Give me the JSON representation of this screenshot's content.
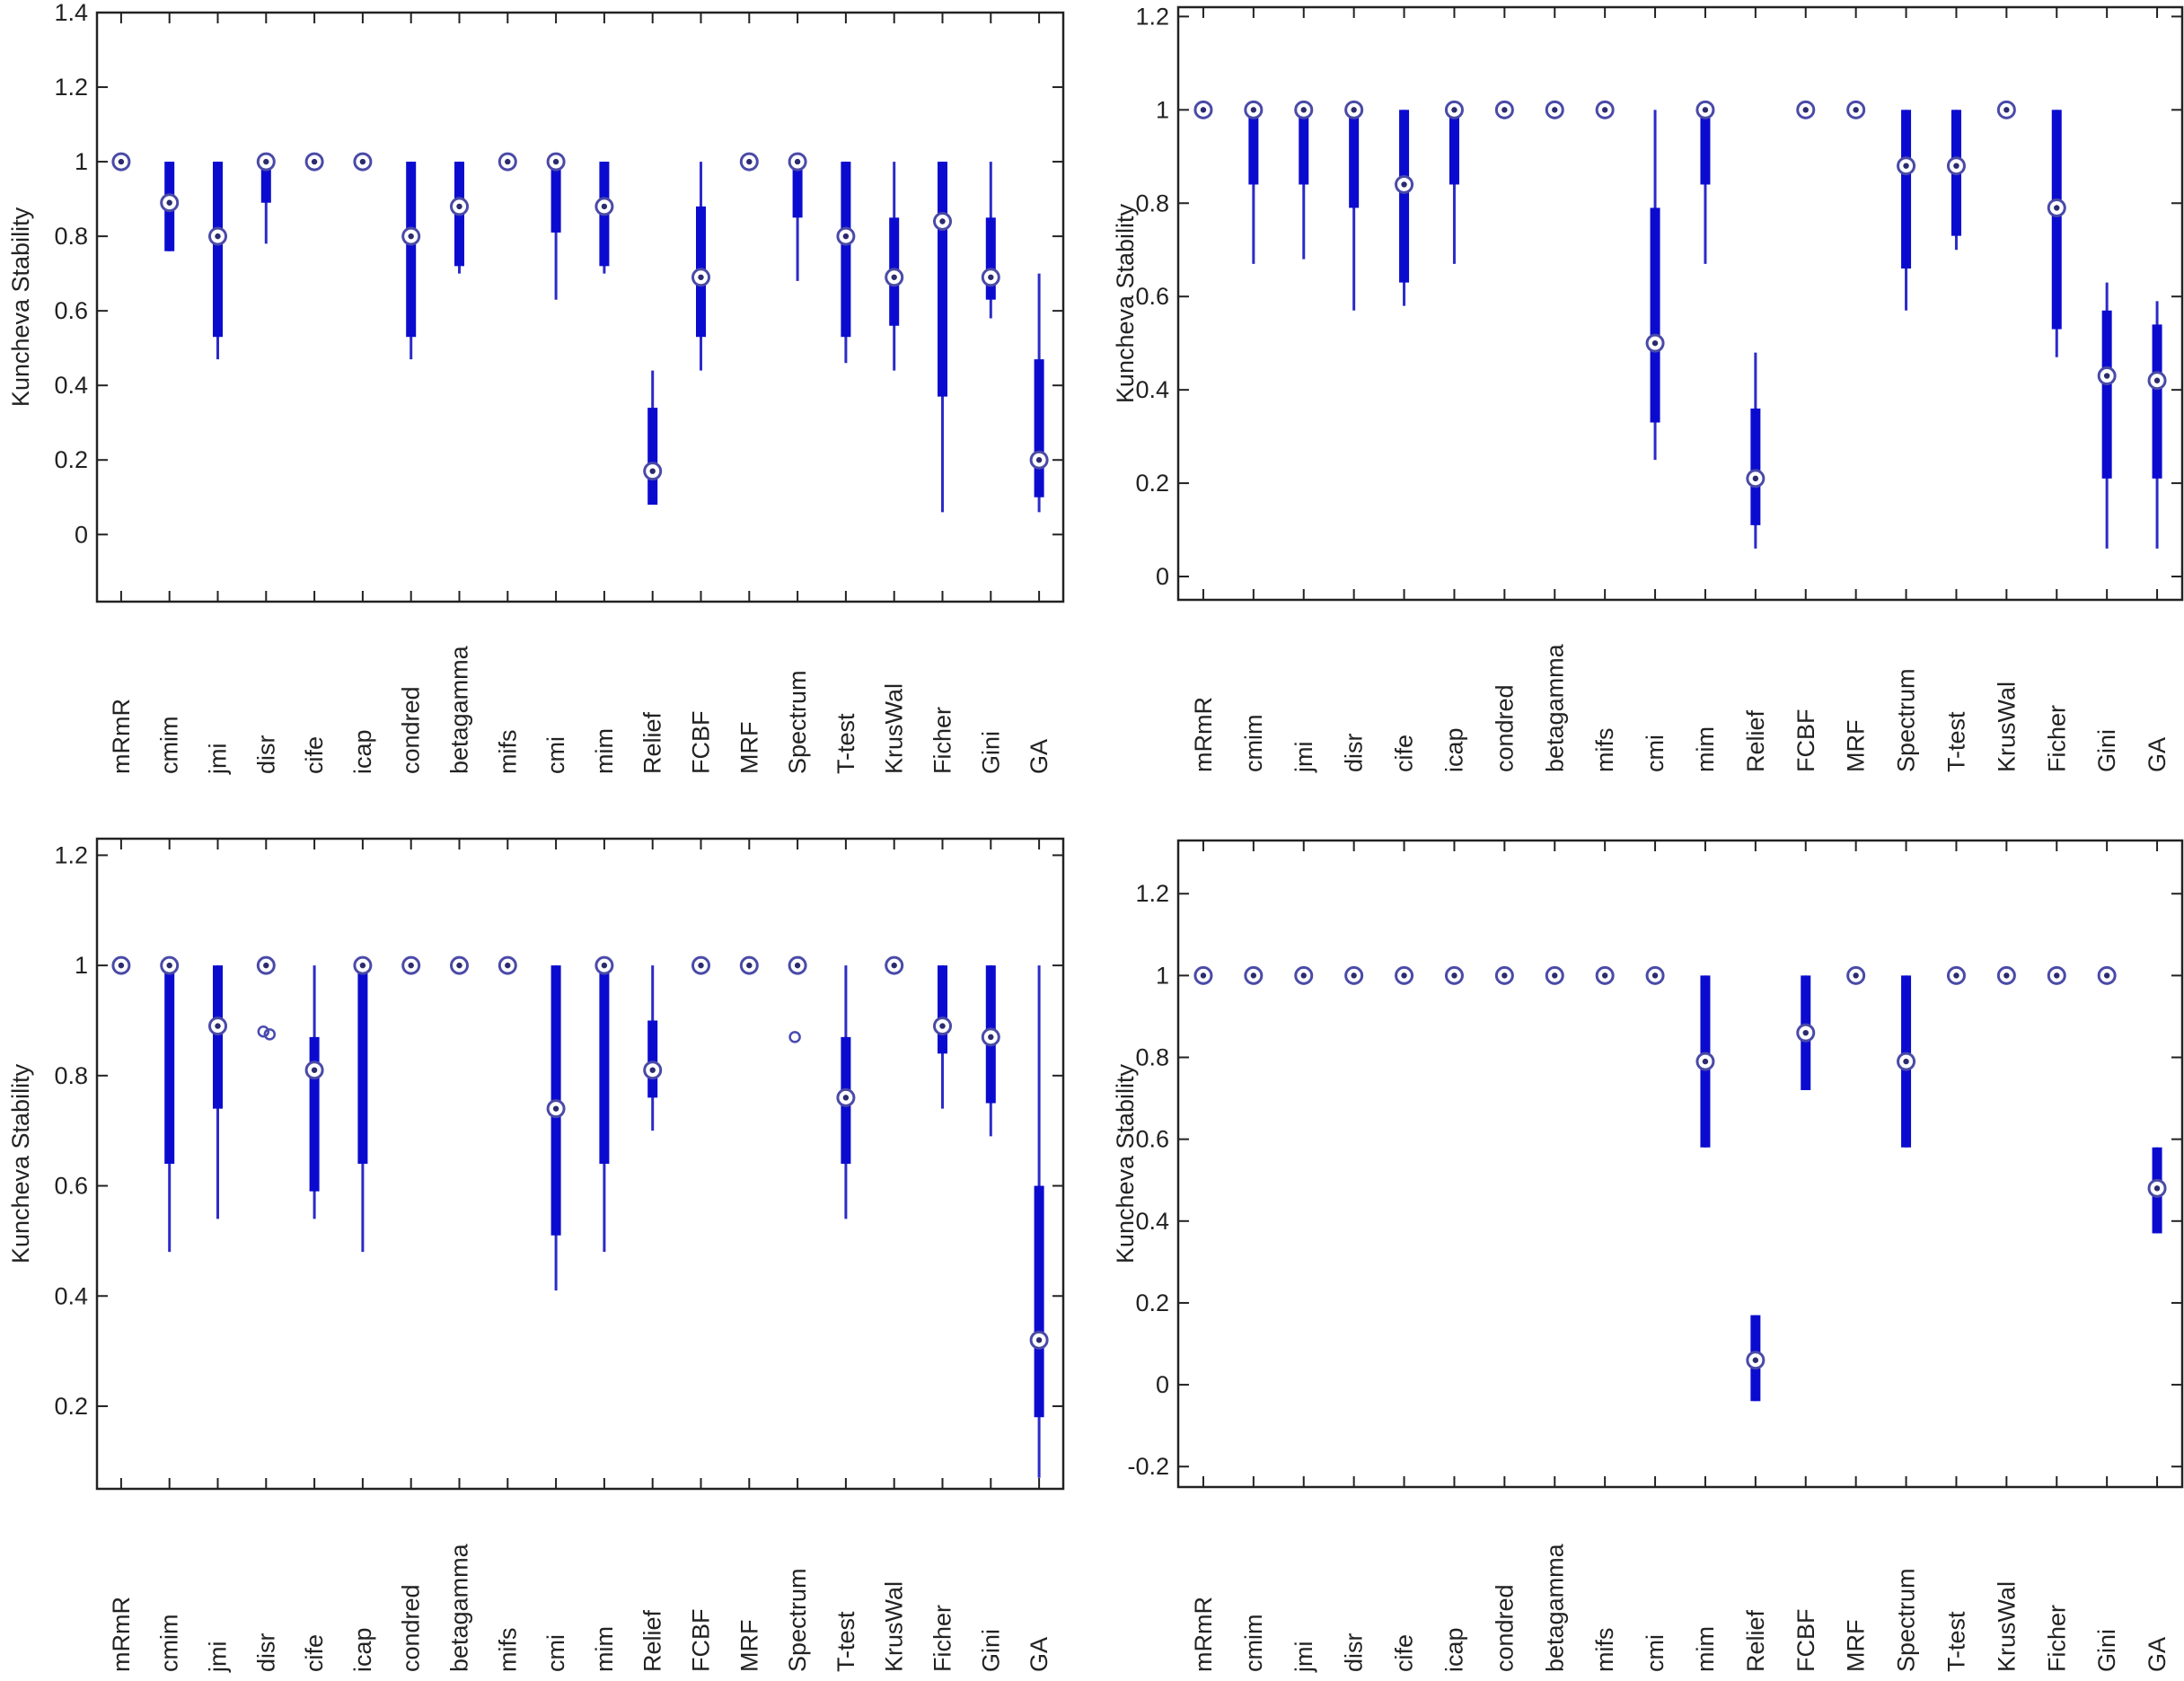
{
  "chart_data": [
    {
      "type": "box",
      "ylabel": "Kuncheva Stability",
      "ylim": [
        -0.18,
        1.4
      ],
      "yticks": [
        0,
        0.2,
        0.4,
        0.6,
        0.8,
        1,
        1.2,
        1.4
      ],
      "categories": [
        "mRmR",
        "cmim",
        "jmi",
        "disr",
        "cife",
        "icap",
        "condred",
        "betagamma",
        "mifs",
        "cmi",
        "mim",
        "Relief",
        "FCBF",
        "MRF",
        "Spectrum",
        "T-test",
        "KrusWal",
        "Ficher",
        "Gini",
        "GA"
      ],
      "boxes": [
        {
          "min": 1,
          "q1": 1,
          "median": 1,
          "q3": 1,
          "max": 1
        },
        {
          "min": 0.76,
          "q1": 0.76,
          "median": 0.89,
          "q3": 1,
          "max": 1
        },
        {
          "min": 0.47,
          "q1": 0.53,
          "median": 0.8,
          "q3": 1,
          "max": 1
        },
        {
          "min": 0.78,
          "q1": 0.89,
          "median": 1,
          "q3": 1,
          "max": 1
        },
        {
          "min": 1,
          "q1": 1,
          "median": 1,
          "q3": 1,
          "max": 1
        },
        {
          "min": 1,
          "q1": 1,
          "median": 1,
          "q3": 1,
          "max": 1
        },
        {
          "min": 0.47,
          "q1": 0.53,
          "median": 0.8,
          "q3": 1,
          "max": 1
        },
        {
          "min": 0.7,
          "q1": 0.72,
          "median": 0.88,
          "q3": 1,
          "max": 1
        },
        {
          "min": 1,
          "q1": 1,
          "median": 1,
          "q3": 1,
          "max": 1
        },
        {
          "min": 0.63,
          "q1": 0.81,
          "median": 1,
          "q3": 1,
          "max": 1
        },
        {
          "min": 0.7,
          "q1": 0.72,
          "median": 0.88,
          "q3": 1,
          "max": 1
        },
        {
          "min": 0.08,
          "q1": 0.08,
          "median": 0.17,
          "q3": 0.34,
          "max": 0.44
        },
        {
          "min": 0.44,
          "q1": 0.53,
          "median": 0.69,
          "q3": 0.88,
          "max": 1
        },
        {
          "min": 1,
          "q1": 1,
          "median": 1,
          "q3": 1,
          "max": 1
        },
        {
          "min": 0.68,
          "q1": 0.85,
          "median": 1,
          "q3": 1,
          "max": 1
        },
        {
          "min": 0.46,
          "q1": 0.53,
          "median": 0.8,
          "q3": 1,
          "max": 1
        },
        {
          "min": 0.44,
          "q1": 0.56,
          "median": 0.69,
          "q3": 0.85,
          "max": 1
        },
        {
          "min": 0.06,
          "q1": 0.37,
          "median": 0.84,
          "q3": 1,
          "max": 1
        },
        {
          "min": 0.58,
          "q1": 0.63,
          "median": 0.69,
          "q3": 0.85,
          "max": 1
        },
        {
          "min": 0.06,
          "q1": 0.1,
          "median": 0.2,
          "q3": 0.47,
          "max": 0.7
        }
      ],
      "outliers": []
    },
    {
      "type": "box",
      "ylabel": "Kuncheva Stability",
      "ylim": [
        -0.05,
        1.22
      ],
      "yticks": [
        0,
        0.2,
        0.4,
        0.6,
        0.8,
        1,
        1.2
      ],
      "categories": [
        "mRmR",
        "cmim",
        "jmi",
        "disr",
        "cife",
        "icap",
        "condred",
        "betagamma",
        "mifs",
        "cmi",
        "mim",
        "Relief",
        "FCBF",
        "MRF",
        "Spectrum",
        "T-test",
        "KrusWal",
        "Ficher",
        "Gini",
        "GA"
      ],
      "boxes": [
        {
          "min": 1,
          "q1": 1,
          "median": 1,
          "q3": 1,
          "max": 1
        },
        {
          "min": 0.67,
          "q1": 0.84,
          "median": 1,
          "q3": 1,
          "max": 1
        },
        {
          "min": 0.68,
          "q1": 0.84,
          "median": 1,
          "q3": 1,
          "max": 1
        },
        {
          "min": 0.57,
          "q1": 0.79,
          "median": 1,
          "q3": 1,
          "max": 1
        },
        {
          "min": 0.58,
          "q1": 0.63,
          "median": 0.84,
          "q3": 1,
          "max": 1
        },
        {
          "min": 0.67,
          "q1": 0.84,
          "median": 1,
          "q3": 1,
          "max": 1
        },
        {
          "min": 1,
          "q1": 1,
          "median": 1,
          "q3": 1,
          "max": 1
        },
        {
          "min": 1,
          "q1": 1,
          "median": 1,
          "q3": 1,
          "max": 1
        },
        {
          "min": 1,
          "q1": 1,
          "median": 1,
          "q3": 1,
          "max": 1
        },
        {
          "min": 0.25,
          "q1": 0.33,
          "median": 0.5,
          "q3": 0.79,
          "max": 1
        },
        {
          "min": 0.67,
          "q1": 0.84,
          "median": 1,
          "q3": 1,
          "max": 1
        },
        {
          "min": 0.06,
          "q1": 0.11,
          "median": 0.21,
          "q3": 0.36,
          "max": 0.48
        },
        {
          "min": 1,
          "q1": 1,
          "median": 1,
          "q3": 1,
          "max": 1
        },
        {
          "min": 1,
          "q1": 1,
          "median": 1,
          "q3": 1,
          "max": 1
        },
        {
          "min": 0.57,
          "q1": 0.66,
          "median": 0.88,
          "q3": 1,
          "max": 1
        },
        {
          "min": 0.7,
          "q1": 0.73,
          "median": 0.88,
          "q3": 1,
          "max": 1
        },
        {
          "min": 1,
          "q1": 1,
          "median": 1,
          "q3": 1,
          "max": 1
        },
        {
          "min": 0.47,
          "q1": 0.53,
          "median": 0.79,
          "q3": 1,
          "max": 1
        },
        {
          "min": 0.06,
          "q1": 0.21,
          "median": 0.43,
          "q3": 0.57,
          "max": 0.63
        },
        {
          "min": 0.06,
          "q1": 0.21,
          "median": 0.42,
          "q3": 0.54,
          "max": 0.59
        }
      ],
      "outliers": []
    },
    {
      "type": "box",
      "ylabel": "Kuncheva Stability",
      "ylim": [
        0.05,
        1.23
      ],
      "yticks": [
        0.2,
        0.4,
        0.6,
        0.8,
        1,
        1.2
      ],
      "categories": [
        "mRmR",
        "cmim",
        "jmi",
        "disr",
        "cife",
        "icap",
        "condred",
        "betagamma",
        "mifs",
        "cmi",
        "mim",
        "Relief",
        "FCBF",
        "MRF",
        "Spectrum",
        "T-test",
        "KrusWal",
        "Ficher",
        "Gini",
        "GA"
      ],
      "boxes": [
        {
          "min": 1,
          "q1": 1,
          "median": 1,
          "q3": 1,
          "max": 1
        },
        {
          "min": 0.48,
          "q1": 0.64,
          "median": 1,
          "q3": 1,
          "max": 1
        },
        {
          "min": 0.54,
          "q1": 0.74,
          "median": 0.89,
          "q3": 1,
          "max": 1
        },
        {
          "min": 1,
          "q1": 1,
          "median": 1,
          "q3": 1,
          "max": 1
        },
        {
          "min": 0.54,
          "q1": 0.59,
          "median": 0.81,
          "q3": 0.87,
          "max": 1
        },
        {
          "min": 0.48,
          "q1": 0.64,
          "median": 1,
          "q3": 1,
          "max": 1
        },
        {
          "min": 1,
          "q1": 1,
          "median": 1,
          "q3": 1,
          "max": 1
        },
        {
          "min": 1,
          "q1": 1,
          "median": 1,
          "q3": 1,
          "max": 1
        },
        {
          "min": 1,
          "q1": 1,
          "median": 1,
          "q3": 1,
          "max": 1
        },
        {
          "min": 0.41,
          "q1": 0.51,
          "median": 0.74,
          "q3": 1,
          "max": 1
        },
        {
          "min": 0.48,
          "q1": 0.64,
          "median": 1,
          "q3": 1,
          "max": 1
        },
        {
          "min": 0.7,
          "q1": 0.76,
          "median": 0.81,
          "q3": 0.9,
          "max": 1
        },
        {
          "min": 1,
          "q1": 1,
          "median": 1,
          "q3": 1,
          "max": 1
        },
        {
          "min": 1,
          "q1": 1,
          "median": 1,
          "q3": 1,
          "max": 1
        },
        {
          "min": 1,
          "q1": 1,
          "median": 1,
          "q3": 1,
          "max": 1
        },
        {
          "min": 0.54,
          "q1": 0.64,
          "median": 0.76,
          "q3": 0.87,
          "max": 1
        },
        {
          "min": 1,
          "q1": 1,
          "median": 1,
          "q3": 1,
          "max": 1
        },
        {
          "min": 0.74,
          "q1": 0.84,
          "median": 0.89,
          "q3": 1,
          "max": 1
        },
        {
          "min": 0.69,
          "q1": 0.75,
          "median": 0.87,
          "q3": 1,
          "max": 1
        },
        {
          "min": 0.07,
          "q1": 0.18,
          "median": 0.32,
          "q3": 0.6,
          "max": 1
        }
      ],
      "outliers": [
        {
          "category": "disr",
          "value": 0.88
        },
        {
          "category": "disr",
          "value": 0.875
        },
        {
          "category": "Spectrum",
          "value": 0.87
        }
      ]
    },
    {
      "type": "box",
      "ylabel": "Kuncheva Stability",
      "ylim": [
        -0.25,
        1.33
      ],
      "yticks": [
        -0.2,
        0,
        0.2,
        0.4,
        0.6,
        0.8,
        1,
        1.2
      ],
      "categories": [
        "mRmR",
        "cmim",
        "jmi",
        "disr",
        "cife",
        "icap",
        "condred",
        "betagamma",
        "mifs",
        "cmi",
        "mim",
        "Relief",
        "FCBF",
        "MRF",
        "Spectrum",
        "T-test",
        "KrusWal",
        "Ficher",
        "Gini",
        "GA"
      ],
      "boxes": [
        {
          "min": 1,
          "q1": 1,
          "median": 1,
          "q3": 1,
          "max": 1
        },
        {
          "min": 1,
          "q1": 1,
          "median": 1,
          "q3": 1,
          "max": 1
        },
        {
          "min": 1,
          "q1": 1,
          "median": 1,
          "q3": 1,
          "max": 1
        },
        {
          "min": 1,
          "q1": 1,
          "median": 1,
          "q3": 1,
          "max": 1
        },
        {
          "min": 1,
          "q1": 1,
          "median": 1,
          "q3": 1,
          "max": 1
        },
        {
          "min": 1,
          "q1": 1,
          "median": 1,
          "q3": 1,
          "max": 1
        },
        {
          "min": 1,
          "q1": 1,
          "median": 1,
          "q3": 1,
          "max": 1
        },
        {
          "min": 1,
          "q1": 1,
          "median": 1,
          "q3": 1,
          "max": 1
        },
        {
          "min": 1,
          "q1": 1,
          "median": 1,
          "q3": 1,
          "max": 1
        },
        {
          "min": 1,
          "q1": 1,
          "median": 1,
          "q3": 1,
          "max": 1
        },
        {
          "min": 0.58,
          "q1": 0.58,
          "median": 0.79,
          "q3": 1,
          "max": 1
        },
        {
          "min": -0.04,
          "q1": -0.04,
          "median": 0.06,
          "q3": 0.17,
          "max": 0.17
        },
        {
          "min": 0.72,
          "q1": 0.72,
          "median": 0.86,
          "q3": 1,
          "max": 1
        },
        {
          "min": 1,
          "q1": 1,
          "median": 1,
          "q3": 1,
          "max": 1
        },
        {
          "min": 0.58,
          "q1": 0.58,
          "median": 0.79,
          "q3": 1,
          "max": 1
        },
        {
          "min": 1,
          "q1": 1,
          "median": 1,
          "q3": 1,
          "max": 1
        },
        {
          "min": 1,
          "q1": 1,
          "median": 1,
          "q3": 1,
          "max": 1
        },
        {
          "min": 1,
          "q1": 1,
          "median": 1,
          "q3": 1,
          "max": 1
        },
        {
          "min": 1,
          "q1": 1,
          "median": 1,
          "q3": 1,
          "max": 1
        },
        {
          "min": 0.37,
          "q1": 0.37,
          "median": 0.48,
          "q3": 0.58,
          "max": 0.58
        }
      ],
      "outliers": []
    }
  ]
}
